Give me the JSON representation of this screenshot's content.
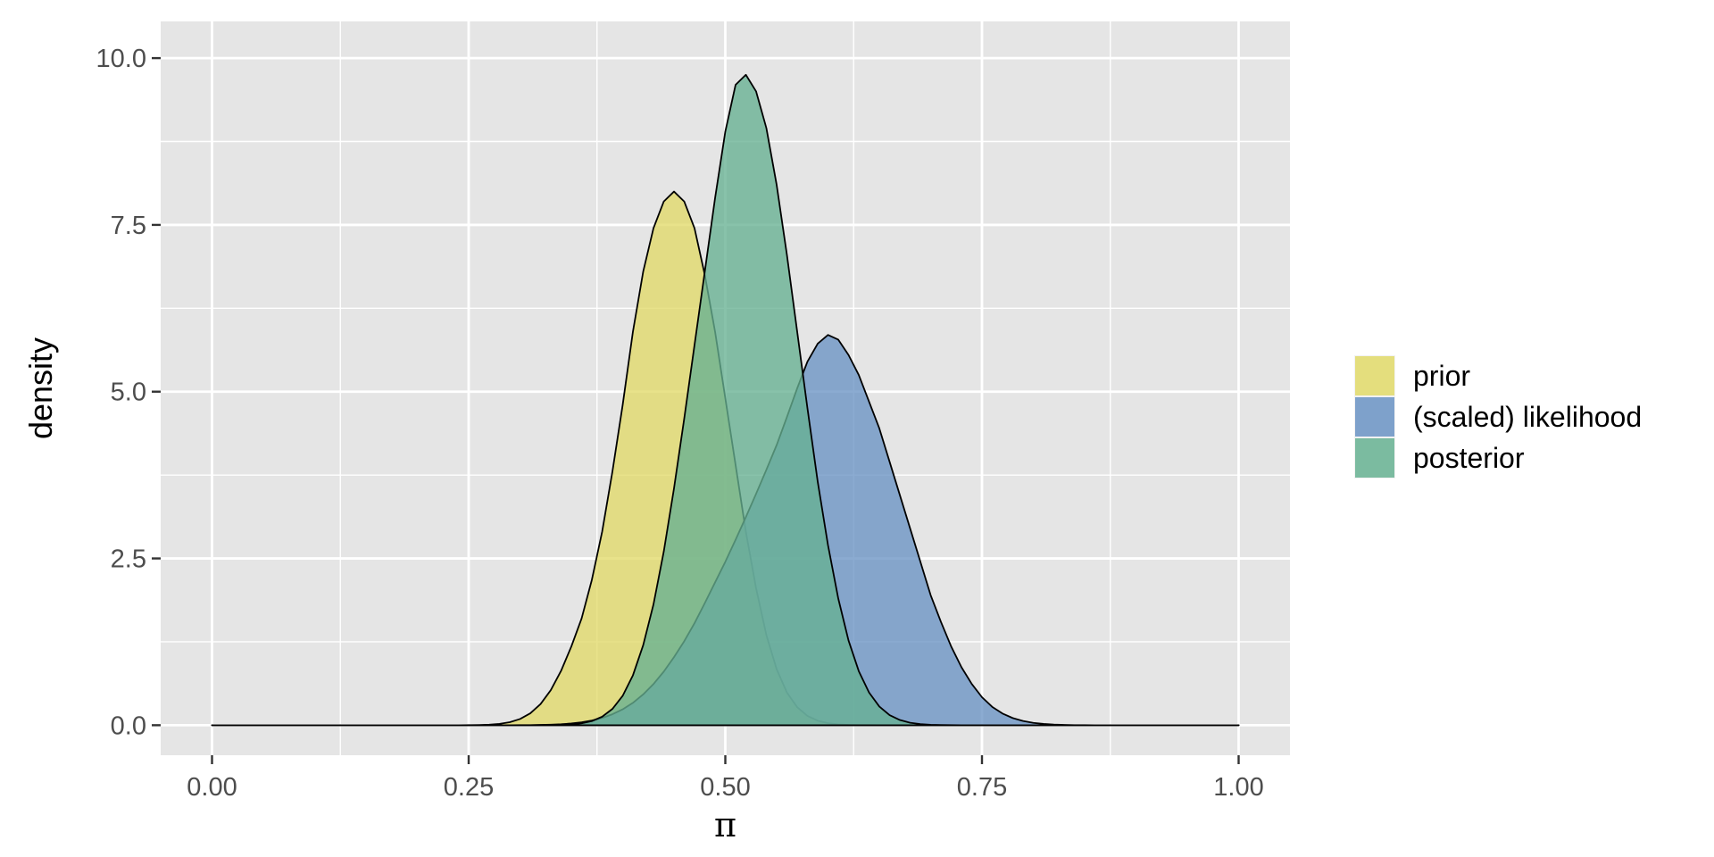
{
  "chart_data": {
    "type": "area",
    "title": "",
    "xlabel": "π",
    "ylabel": "density",
    "xlim": [
      -0.05,
      1.05
    ],
    "ylim": [
      -0.45,
      10.55
    ],
    "x_ticks": [
      0,
      0.25,
      0.5,
      0.75,
      1
    ],
    "x_tick_labels": [
      "0.00",
      "0.25",
      "0.50",
      "0.75",
      "1.00"
    ],
    "y_ticks": [
      0,
      2.5,
      5,
      7.5,
      10
    ],
    "y_tick_labels": [
      "0.0",
      "2.5",
      "5.0",
      "7.5",
      "10.0"
    ],
    "grid": true,
    "legend_position": "right",
    "panel_background": "#e5e5e5",
    "x": [
      0,
      0.01,
      0.02,
      0.03,
      0.04,
      0.05,
      0.06,
      0.07,
      0.08,
      0.09,
      0.1,
      0.11,
      0.12,
      0.13,
      0.14,
      0.15,
      0.16,
      0.17,
      0.18,
      0.19,
      0.2,
      0.21,
      0.22,
      0.23,
      0.24,
      0.25,
      0.26,
      0.27,
      0.28,
      0.29,
      0.3,
      0.31,
      0.32,
      0.33,
      0.34,
      0.35,
      0.36,
      0.37,
      0.38,
      0.39,
      0.4,
      0.41,
      0.42,
      0.43,
      0.44,
      0.45,
      0.46,
      0.47,
      0.48,
      0.49,
      0.5,
      0.51,
      0.52,
      0.53,
      0.54,
      0.55,
      0.56,
      0.57,
      0.58,
      0.59,
      0.6,
      0.61,
      0.62,
      0.63,
      0.64,
      0.65,
      0.66,
      0.67,
      0.68,
      0.69,
      0.7,
      0.71,
      0.72,
      0.73,
      0.74,
      0.75,
      0.76,
      0.77,
      0.78,
      0.79,
      0.8,
      0.81,
      0.82,
      0.83,
      0.84,
      0.85,
      0.86,
      0.87,
      0.88,
      0.89,
      0.9,
      0.91,
      0.92,
      0.93,
      0.94,
      0.95,
      0.96,
      0.97,
      0.98,
      0.99,
      1
    ],
    "series": [
      {
        "name": "prior",
        "color": "#e2da69",
        "values": [
          0,
          0,
          0,
          0,
          0,
          0,
          0,
          0,
          0,
          0,
          0,
          0,
          0,
          0,
          0,
          0,
          0,
          0,
          0,
          0,
          0,
          0,
          0,
          0,
          0,
          0.001,
          0.003,
          0.008,
          0.02,
          0.045,
          0.093,
          0.178,
          0.317,
          0.526,
          0.815,
          1.18,
          1.6,
          2.18,
          2.9,
          3.8,
          4.8,
          5.9,
          6.8,
          7.45,
          7.85,
          8.0,
          7.85,
          7.45,
          6.75,
          5.9,
          4.9,
          3.9,
          2.9,
          2.05,
          1.35,
          0.84,
          0.49,
          0.27,
          0.14,
          0.067,
          0.03,
          0.013,
          0.005,
          0.002,
          0.001,
          0,
          0,
          0,
          0,
          0,
          0,
          0,
          0,
          0,
          0,
          0,
          0,
          0,
          0,
          0,
          0,
          0,
          0,
          0,
          0,
          0,
          0,
          0,
          0,
          0,
          0,
          0,
          0,
          0,
          0,
          0,
          0,
          0,
          0,
          0,
          0
        ]
      },
      {
        "name": "(scaled) likelihood",
        "color": "#6a93c4",
        "values": [
          0,
          0,
          0,
          0,
          0,
          0,
          0,
          0,
          0,
          0,
          0,
          0,
          0,
          0,
          0,
          0,
          0,
          0,
          0,
          0,
          0,
          0,
          0,
          0,
          0,
          0,
          0,
          0,
          0,
          0,
          0.001,
          0.002,
          0.004,
          0.008,
          0.015,
          0.026,
          0.044,
          0.07,
          0.109,
          0.164,
          0.238,
          0.336,
          0.462,
          0.617,
          0.803,
          1.02,
          1.26,
          1.53,
          1.83,
          2.14,
          2.45,
          2.78,
          3.12,
          3.47,
          3.83,
          4.2,
          4.62,
          5.05,
          5.45,
          5.72,
          5.85,
          5.78,
          5.55,
          5.25,
          4.85,
          4.45,
          3.95,
          3.45,
          2.95,
          2.45,
          1.95,
          1.55,
          1.18,
          0.87,
          0.62,
          0.42,
          0.275,
          0.175,
          0.107,
          0.063,
          0.035,
          0.019,
          0.01,
          0.005,
          0.002,
          0.001,
          0,
          0,
          0,
          0,
          0,
          0,
          0,
          0,
          0,
          0,
          0,
          0,
          0,
          0,
          0
        ]
      },
      {
        "name": "posterior",
        "color": "#66b192",
        "values": [
          0,
          0,
          0,
          0,
          0,
          0,
          0,
          0,
          0,
          0,
          0,
          0,
          0,
          0,
          0,
          0,
          0,
          0,
          0,
          0,
          0,
          0,
          0,
          0,
          0,
          0,
          0,
          0,
          0,
          0,
          0,
          0,
          0.001,
          0.002,
          0.005,
          0.012,
          0.028,
          0.062,
          0.127,
          0.244,
          0.44,
          0.748,
          1.2,
          1.81,
          2.6,
          3.55,
          4.6,
          5.7,
          6.8,
          7.9,
          8.9,
          9.6,
          9.75,
          9.5,
          8.95,
          8.1,
          7.05,
          5.9,
          4.75,
          3.65,
          2.7,
          1.9,
          1.27,
          0.81,
          0.49,
          0.28,
          0.152,
          0.078,
          0.037,
          0.017,
          0.007,
          0.003,
          0.001,
          0,
          0,
          0,
          0,
          0,
          0,
          0,
          0,
          0,
          0,
          0,
          0,
          0,
          0,
          0,
          0,
          0,
          0,
          0,
          0,
          0,
          0,
          0,
          0,
          0,
          0,
          0,
          0
        ]
      }
    ]
  }
}
